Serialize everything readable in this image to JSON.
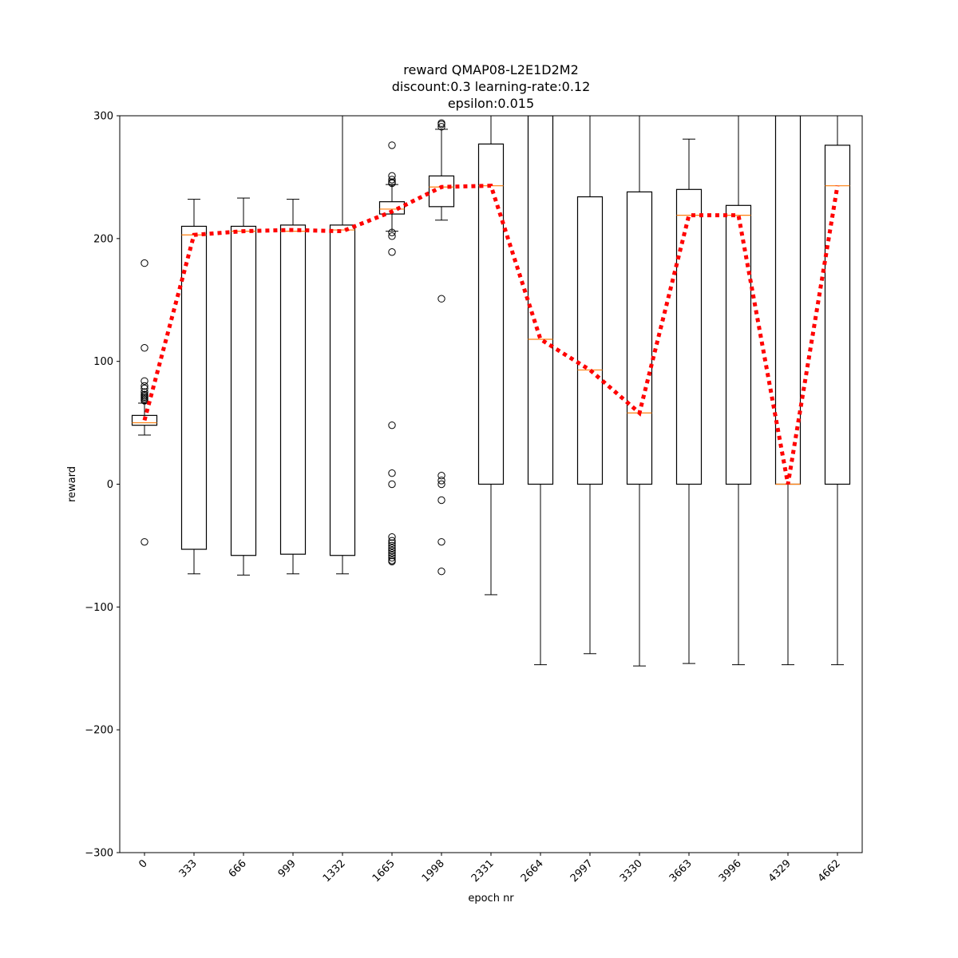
{
  "chart_data": {
    "type": "box",
    "title_lines": [
      "reward QMAP08-L2E1D2M2",
      "discount:0.3 learning-rate:0.12",
      "epsilon:0.015"
    ],
    "xlabel": "epoch nr",
    "ylabel": "reward",
    "ylim": [
      -300,
      300
    ],
    "yticks": [
      -300,
      -200,
      -100,
      0,
      100,
      200,
      300
    ],
    "grid": false,
    "categories": [
      "0",
      "333",
      "666",
      "999",
      "1332",
      "1665",
      "1998",
      "2331",
      "2664",
      "2997",
      "3330",
      "3663",
      "3996",
      "4329",
      "4662"
    ],
    "boxes": [
      {
        "q1": 48,
        "median": 50,
        "q3": 56,
        "whisker_low": 40,
        "whisker_high": 66,
        "outliers": [
          180,
          111,
          84,
          80,
          78,
          75,
          73,
          72,
          71,
          70,
          69,
          68,
          -47
        ]
      },
      {
        "q1": -53,
        "median": 203,
        "q3": 210,
        "whisker_low": -73,
        "whisker_high": 232,
        "outliers": []
      },
      {
        "q1": -58,
        "median": 206,
        "q3": 210,
        "whisker_low": -74,
        "whisker_high": 233,
        "outliers": []
      },
      {
        "q1": -57,
        "median": 206,
        "q3": 211,
        "whisker_low": -73,
        "whisker_high": 232,
        "outliers": []
      },
      {
        "q1": -58,
        "median": 207,
        "q3": 211,
        "whisker_low": -73,
        "whisker_high": 300,
        "outliers": []
      },
      {
        "q1": 220,
        "median": 224,
        "q3": 230,
        "whisker_low": 206,
        "whisker_high": 244,
        "outliers": [
          276,
          251,
          248,
          246,
          245,
          205,
          202,
          189,
          48,
          9,
          0,
          -43,
          -46,
          -48,
          -50,
          -52,
          -54,
          -56,
          -58,
          -60,
          -62,
          -63
        ]
      },
      {
        "q1": 226,
        "median": 242,
        "q3": 251,
        "whisker_low": 215,
        "whisker_high": 289,
        "outliers": [
          294,
          293,
          291,
          151,
          7,
          3,
          0,
          -13,
          -47,
          -71
        ]
      },
      {
        "q1": 0,
        "median": 243,
        "q3": 277,
        "whisker_low": -90,
        "whisker_high": 300,
        "outliers": []
      },
      {
        "q1": 0,
        "median": 118,
        "q3": 300,
        "whisker_low": -147,
        "whisker_high": 300,
        "outliers": []
      },
      {
        "q1": 0,
        "median": 93,
        "q3": 234,
        "whisker_low": -138,
        "whisker_high": 300,
        "outliers": []
      },
      {
        "q1": 0,
        "median": 58,
        "q3": 238,
        "whisker_low": -148,
        "whisker_high": 300,
        "outliers": []
      },
      {
        "q1": 0,
        "median": 219,
        "q3": 240,
        "whisker_low": -146,
        "whisker_high": 281,
        "outliers": []
      },
      {
        "q1": 0,
        "median": 219,
        "q3": 227,
        "whisker_low": -147,
        "whisker_high": 300,
        "outliers": []
      },
      {
        "q1": 0,
        "median": 0,
        "q3": 300,
        "whisker_low": -147,
        "whisker_high": 300,
        "outliers": []
      },
      {
        "q1": 0,
        "median": 243,
        "q3": 276,
        "whisker_low": -147,
        "whisker_high": 300,
        "outliers": []
      }
    ],
    "mean_line": {
      "style": "dotted",
      "color": "#ff0000",
      "values": [
        52,
        203,
        206,
        207,
        206,
        222,
        242,
        243,
        118,
        93,
        58,
        219,
        219,
        0,
        243
      ]
    },
    "colors": {
      "box": "#000000",
      "median": "#ff7f0e",
      "mean": "#ff0000"
    }
  }
}
